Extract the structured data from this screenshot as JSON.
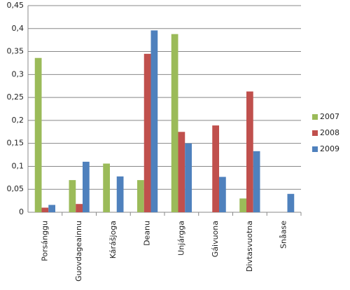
{
  "chart_data": {
    "type": "bar",
    "categories": [
      "Porsánggu",
      "Guovdageainnu",
      "Kárášjoga",
      "Deanu",
      "Unjárgga",
      "Gáivuona",
      "Divtasvuotna",
      "Snåase"
    ],
    "series": [
      {
        "name": "2007",
        "color": "#9bbb59",
        "values": [
          0.336,
          0.07,
          0.106,
          0.07,
          0.388,
          0,
          0.03,
          0
        ]
      },
      {
        "name": "2008",
        "color": "#c0504d",
        "values": [
          0.01,
          0.018,
          0,
          0.345,
          0.175,
          0.189,
          0.263,
          0
        ]
      },
      {
        "name": "2009",
        "color": "#4f81bd",
        "values": [
          0.016,
          0.11,
          0.078,
          0.396,
          0.15,
          0.077,
          0.133,
          0.04
        ]
      }
    ],
    "ylim": [
      0,
      0.45
    ],
    "yticks": [
      0,
      {
        "value": 0.05,
        "label": "0,05"
      },
      {
        "value": 0.1,
        "label": "0,1"
      },
      {
        "value": 0.15,
        "label": "0,15"
      },
      {
        "value": 0.2,
        "label": "0,2"
      },
      {
        "value": 0.25,
        "label": "0,25"
      },
      {
        "value": 0.3,
        "label": "0,3"
      },
      {
        "value": 0.35,
        "label": "0,35"
      },
      {
        "value": 0.4,
        "label": "0,4"
      },
      {
        "value": 0.45,
        "label": "0,45"
      }
    ],
    "grid": true,
    "legend": "right"
  }
}
